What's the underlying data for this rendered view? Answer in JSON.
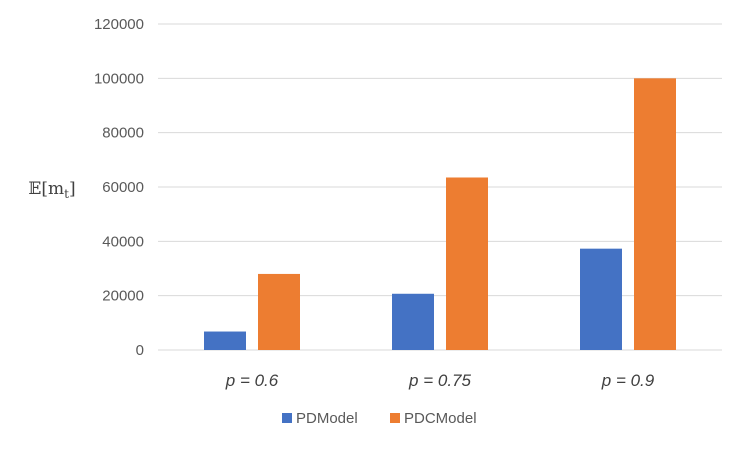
{
  "chart_data": {
    "type": "bar",
    "categories": [
      "p = 0.6",
      "p = 0.75",
      "p = 0.9"
    ],
    "series": [
      {
        "name": "PDModel",
        "color": "#4472C4",
        "values": [
          6800,
          20700,
          37300
        ]
      },
      {
        "name": "PDCModel",
        "color": "#ED7D31",
        "values": [
          28000,
          63500,
          100000
        ]
      }
    ],
    "ylabel": {
      "main": "𝔼[m",
      "sub": "t",
      "close": "]"
    },
    "xlabel": "",
    "title": "",
    "ylim": [
      0,
      120000
    ],
    "yticks": [
      0,
      20000,
      40000,
      60000,
      80000,
      100000,
      120000
    ],
    "grid": true,
    "legend": "bottom"
  }
}
